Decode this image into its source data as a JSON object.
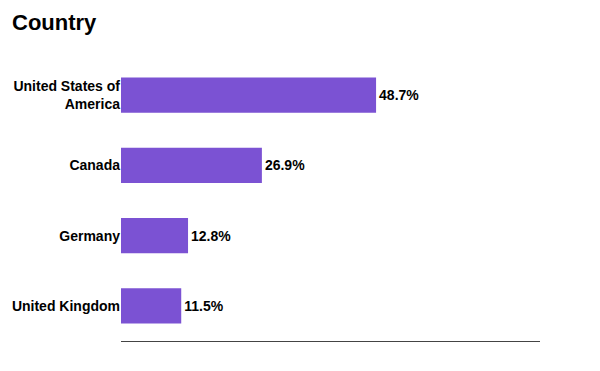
{
  "chart_data": {
    "type": "bar",
    "orientation": "horizontal",
    "title": "Country",
    "categories": [
      "United States of\nAmerica",
      "Canada",
      "Germany",
      "United Kingdom"
    ],
    "values": [
      48.7,
      26.9,
      12.8,
      11.5
    ],
    "value_labels": [
      "48.7%",
      "26.9%",
      "12.8%",
      "11.5%"
    ],
    "data_labels": true,
    "color": "#7B52D3",
    "xlim": [
      0,
      80
    ],
    "grid": false,
    "tick_labels": "y"
  }
}
